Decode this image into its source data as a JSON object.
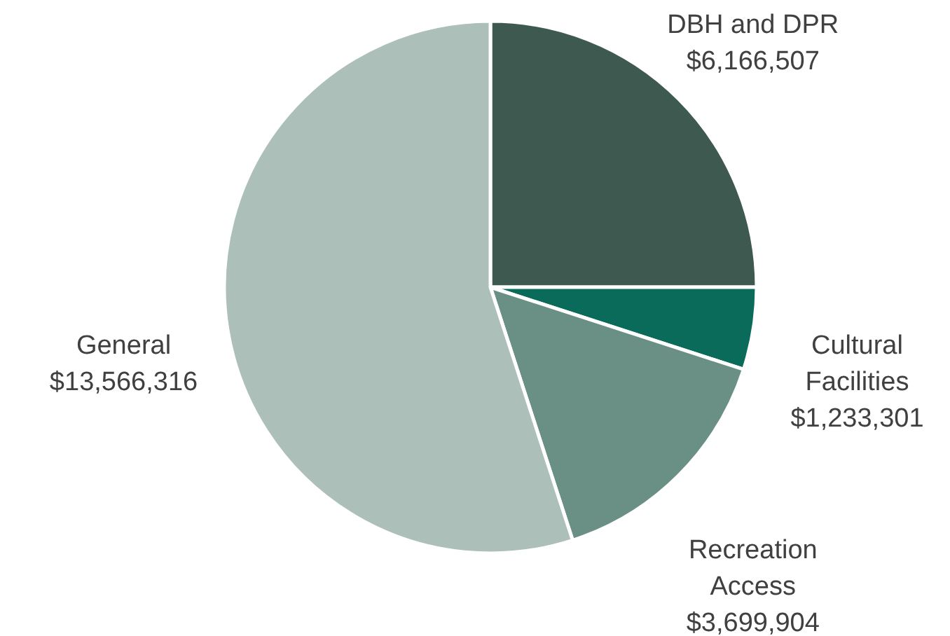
{
  "chart_data": {
    "type": "pie",
    "categories": [
      "DBH and DPR",
      "Cultural Facilities",
      "Recreation Access",
      "General"
    ],
    "values": [
      6166507,
      1233301,
      3699904,
      13566316
    ],
    "colors": [
      "#3e5a50",
      "#0b6b5a",
      "#6a9085",
      "#adbfb9"
    ],
    "value_labels": [
      "$6,166,507",
      "$1,233,301",
      "$3,699,904",
      "$13,566,316"
    ]
  }
}
